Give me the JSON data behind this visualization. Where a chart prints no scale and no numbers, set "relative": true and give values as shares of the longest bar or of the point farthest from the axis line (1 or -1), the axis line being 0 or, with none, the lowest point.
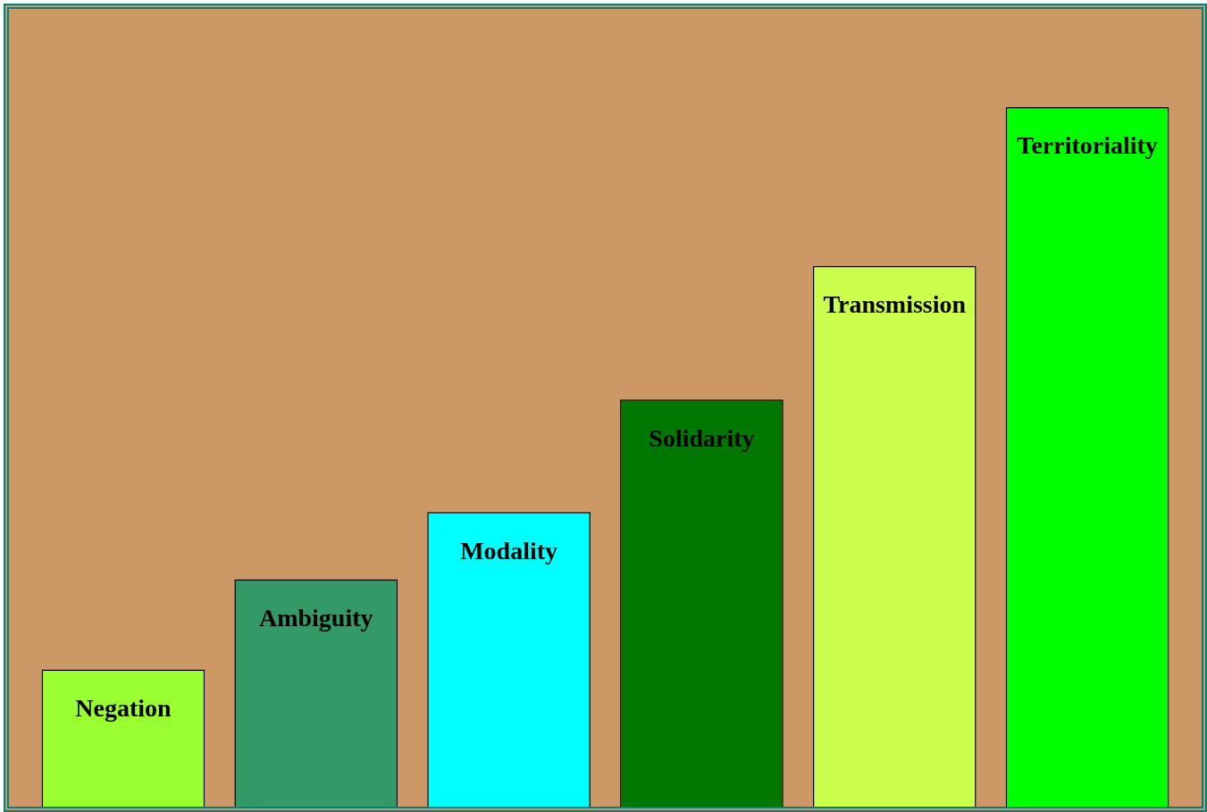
{
  "chart_data": {
    "type": "bar",
    "relative": true,
    "tick_labels": false,
    "grid": false,
    "legend": false,
    "categories": [
      "Negation",
      "Ambiguity",
      "Modality",
      "Solidarity",
      "Transmission",
      "Territoriality"
    ],
    "values": [
      0.196,
      0.325,
      0.421,
      0.582,
      0.773,
      1
    ],
    "colors": [
      "#99ff33",
      "#339966",
      "#00ffff",
      "#007700",
      "#ccff4d",
      "#00ff00"
    ]
  }
}
